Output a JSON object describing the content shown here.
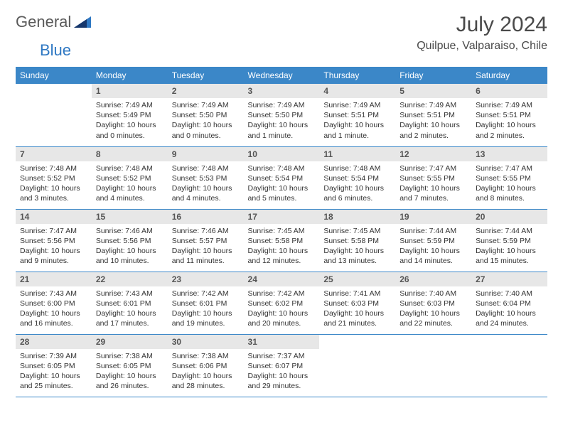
{
  "logo": {
    "text_general": "General",
    "text_blue": "Blue"
  },
  "title": {
    "month": "July 2024",
    "location": "Quilpue, Valparaiso, Chile"
  },
  "colors": {
    "header_bg": "#3b87c8",
    "header_text": "#ffffff",
    "daynum_bg": "#e7e7e7",
    "row_divider": "#3b87c8",
    "body_text": "#333333",
    "logo_gray": "#5a5a5a",
    "logo_blue": "#2f78c3",
    "title_color": "#4a4a4a"
  },
  "weekdays": [
    "Sunday",
    "Monday",
    "Tuesday",
    "Wednesday",
    "Thursday",
    "Friday",
    "Saturday"
  ],
  "weeks": [
    [
      {
        "day": "",
        "empty": true
      },
      {
        "day": "1",
        "sunrise": "Sunrise: 7:49 AM",
        "sunset": "Sunset: 5:49 PM",
        "daylight1": "Daylight: 10 hours",
        "daylight2": "and 0 minutes."
      },
      {
        "day": "2",
        "sunrise": "Sunrise: 7:49 AM",
        "sunset": "Sunset: 5:50 PM",
        "daylight1": "Daylight: 10 hours",
        "daylight2": "and 0 minutes."
      },
      {
        "day": "3",
        "sunrise": "Sunrise: 7:49 AM",
        "sunset": "Sunset: 5:50 PM",
        "daylight1": "Daylight: 10 hours",
        "daylight2": "and 1 minute."
      },
      {
        "day": "4",
        "sunrise": "Sunrise: 7:49 AM",
        "sunset": "Sunset: 5:51 PM",
        "daylight1": "Daylight: 10 hours",
        "daylight2": "and 1 minute."
      },
      {
        "day": "5",
        "sunrise": "Sunrise: 7:49 AM",
        "sunset": "Sunset: 5:51 PM",
        "daylight1": "Daylight: 10 hours",
        "daylight2": "and 2 minutes."
      },
      {
        "day": "6",
        "sunrise": "Sunrise: 7:49 AM",
        "sunset": "Sunset: 5:51 PM",
        "daylight1": "Daylight: 10 hours",
        "daylight2": "and 2 minutes."
      }
    ],
    [
      {
        "day": "7",
        "sunrise": "Sunrise: 7:48 AM",
        "sunset": "Sunset: 5:52 PM",
        "daylight1": "Daylight: 10 hours",
        "daylight2": "and 3 minutes."
      },
      {
        "day": "8",
        "sunrise": "Sunrise: 7:48 AM",
        "sunset": "Sunset: 5:52 PM",
        "daylight1": "Daylight: 10 hours",
        "daylight2": "and 4 minutes."
      },
      {
        "day": "9",
        "sunrise": "Sunrise: 7:48 AM",
        "sunset": "Sunset: 5:53 PM",
        "daylight1": "Daylight: 10 hours",
        "daylight2": "and 4 minutes."
      },
      {
        "day": "10",
        "sunrise": "Sunrise: 7:48 AM",
        "sunset": "Sunset: 5:54 PM",
        "daylight1": "Daylight: 10 hours",
        "daylight2": "and 5 minutes."
      },
      {
        "day": "11",
        "sunrise": "Sunrise: 7:48 AM",
        "sunset": "Sunset: 5:54 PM",
        "daylight1": "Daylight: 10 hours",
        "daylight2": "and 6 minutes."
      },
      {
        "day": "12",
        "sunrise": "Sunrise: 7:47 AM",
        "sunset": "Sunset: 5:55 PM",
        "daylight1": "Daylight: 10 hours",
        "daylight2": "and 7 minutes."
      },
      {
        "day": "13",
        "sunrise": "Sunrise: 7:47 AM",
        "sunset": "Sunset: 5:55 PM",
        "daylight1": "Daylight: 10 hours",
        "daylight2": "and 8 minutes."
      }
    ],
    [
      {
        "day": "14",
        "sunrise": "Sunrise: 7:47 AM",
        "sunset": "Sunset: 5:56 PM",
        "daylight1": "Daylight: 10 hours",
        "daylight2": "and 9 minutes."
      },
      {
        "day": "15",
        "sunrise": "Sunrise: 7:46 AM",
        "sunset": "Sunset: 5:56 PM",
        "daylight1": "Daylight: 10 hours",
        "daylight2": "and 10 minutes."
      },
      {
        "day": "16",
        "sunrise": "Sunrise: 7:46 AM",
        "sunset": "Sunset: 5:57 PM",
        "daylight1": "Daylight: 10 hours",
        "daylight2": "and 11 minutes."
      },
      {
        "day": "17",
        "sunrise": "Sunrise: 7:45 AM",
        "sunset": "Sunset: 5:58 PM",
        "daylight1": "Daylight: 10 hours",
        "daylight2": "and 12 minutes."
      },
      {
        "day": "18",
        "sunrise": "Sunrise: 7:45 AM",
        "sunset": "Sunset: 5:58 PM",
        "daylight1": "Daylight: 10 hours",
        "daylight2": "and 13 minutes."
      },
      {
        "day": "19",
        "sunrise": "Sunrise: 7:44 AM",
        "sunset": "Sunset: 5:59 PM",
        "daylight1": "Daylight: 10 hours",
        "daylight2": "and 14 minutes."
      },
      {
        "day": "20",
        "sunrise": "Sunrise: 7:44 AM",
        "sunset": "Sunset: 5:59 PM",
        "daylight1": "Daylight: 10 hours",
        "daylight2": "and 15 minutes."
      }
    ],
    [
      {
        "day": "21",
        "sunrise": "Sunrise: 7:43 AM",
        "sunset": "Sunset: 6:00 PM",
        "daylight1": "Daylight: 10 hours",
        "daylight2": "and 16 minutes."
      },
      {
        "day": "22",
        "sunrise": "Sunrise: 7:43 AM",
        "sunset": "Sunset: 6:01 PM",
        "daylight1": "Daylight: 10 hours",
        "daylight2": "and 17 minutes."
      },
      {
        "day": "23",
        "sunrise": "Sunrise: 7:42 AM",
        "sunset": "Sunset: 6:01 PM",
        "daylight1": "Daylight: 10 hours",
        "daylight2": "and 19 minutes."
      },
      {
        "day": "24",
        "sunrise": "Sunrise: 7:42 AM",
        "sunset": "Sunset: 6:02 PM",
        "daylight1": "Daylight: 10 hours",
        "daylight2": "and 20 minutes."
      },
      {
        "day": "25",
        "sunrise": "Sunrise: 7:41 AM",
        "sunset": "Sunset: 6:03 PM",
        "daylight1": "Daylight: 10 hours",
        "daylight2": "and 21 minutes."
      },
      {
        "day": "26",
        "sunrise": "Sunrise: 7:40 AM",
        "sunset": "Sunset: 6:03 PM",
        "daylight1": "Daylight: 10 hours",
        "daylight2": "and 22 minutes."
      },
      {
        "day": "27",
        "sunrise": "Sunrise: 7:40 AM",
        "sunset": "Sunset: 6:04 PM",
        "daylight1": "Daylight: 10 hours",
        "daylight2": "and 24 minutes."
      }
    ],
    [
      {
        "day": "28",
        "sunrise": "Sunrise: 7:39 AM",
        "sunset": "Sunset: 6:05 PM",
        "daylight1": "Daylight: 10 hours",
        "daylight2": "and 25 minutes."
      },
      {
        "day": "29",
        "sunrise": "Sunrise: 7:38 AM",
        "sunset": "Sunset: 6:05 PM",
        "daylight1": "Daylight: 10 hours",
        "daylight2": "and 26 minutes."
      },
      {
        "day": "30",
        "sunrise": "Sunrise: 7:38 AM",
        "sunset": "Sunset: 6:06 PM",
        "daylight1": "Daylight: 10 hours",
        "daylight2": "and 28 minutes."
      },
      {
        "day": "31",
        "sunrise": "Sunrise: 7:37 AM",
        "sunset": "Sunset: 6:07 PM",
        "daylight1": "Daylight: 10 hours",
        "daylight2": "and 29 minutes."
      },
      {
        "day": "",
        "empty": true
      },
      {
        "day": "",
        "empty": true
      },
      {
        "day": "",
        "empty": true
      }
    ]
  ]
}
